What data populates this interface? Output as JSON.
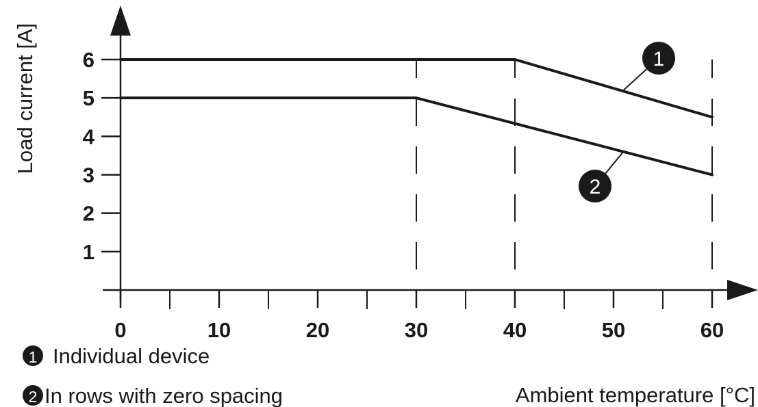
{
  "chart_data": {
    "type": "line",
    "xlabel": "Ambient temperature [°C]",
    "ylabel": "Load current [A]",
    "xlim": [
      0,
      60
    ],
    "ylim": [
      0,
      6
    ],
    "x_ticks": [
      0,
      10,
      20,
      30,
      40,
      50,
      60
    ],
    "x_minor_ticks": [
      5,
      15,
      25,
      35,
      45,
      55
    ],
    "y_ticks": [
      1,
      2,
      3,
      4,
      5,
      6
    ],
    "dashed_reference_x": [
      30,
      40,
      60
    ],
    "series": [
      {
        "marker": "1",
        "points": [
          [
            0,
            6
          ],
          [
            40,
            6
          ],
          [
            60,
            4.5
          ]
        ],
        "label_at": [
          51,
          5.2
        ]
      },
      {
        "marker": "2",
        "points": [
          [
            0,
            5
          ],
          [
            30,
            5
          ],
          [
            60,
            3
          ]
        ],
        "label_at": [
          51,
          3.6
        ]
      }
    ],
    "legend": [
      {
        "marker": "1",
        "text": "Individual device"
      },
      {
        "marker": "2",
        "text": "In rows with zero spacing"
      }
    ],
    "colors": {
      "line": "#1a1a1a",
      "marker_fill": "#1a1a1a",
      "marker_text": "#ffffff"
    }
  }
}
